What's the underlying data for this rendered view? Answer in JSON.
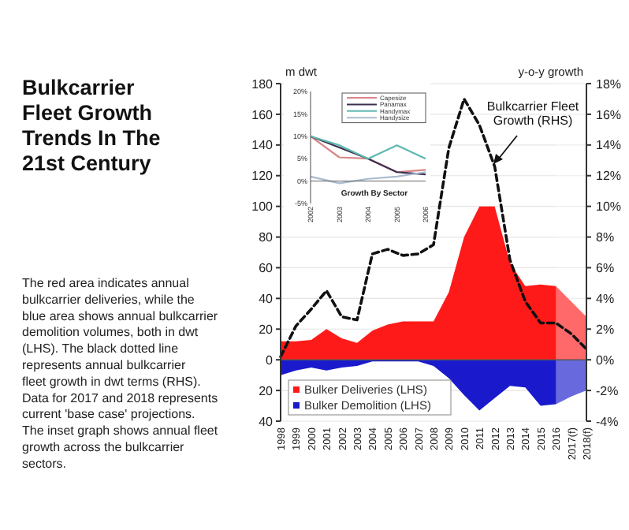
{
  "chart_data": [
    {
      "type": "area",
      "title": "Bulkcarrier Fleet Growth Trends In The 21st Century",
      "annotations": [
        "The red area indicates annual bulkcarrier deliveries, while the blue area shows annual bulkcarrier demolition volumes, both in dwt (LHS). The black dotted line represents annual bulkcarrier fleet growth in dwt terms (RHS). Data for 2017 and 2018 represents current 'base case' projections. The inset graph shows annual fleet growth across the bulkcarrier sectors."
      ],
      "ylabel": "m dwt",
      "y2label": "y-o-y growth",
      "categories": [
        "1998",
        "1999",
        "2000",
        "2001",
        "2002",
        "2003",
        "2004",
        "2005",
        "2006",
        "2007",
        "2008",
        "2009",
        "2010",
        "2011",
        "2012",
        "2013",
        "2014",
        "2015",
        "2016",
        "2017(f)",
        "2018(f)"
      ],
      "series": [
        {
          "name": "Bulker Deliveries (LHS)",
          "color": "#ff1a1a",
          "values": [
            12,
            12,
            13,
            20,
            14,
            11,
            19,
            23,
            25,
            25,
            25,
            44,
            80,
            100,
            100,
            63,
            48,
            49,
            48,
            38,
            28
          ]
        },
        {
          "name": "Bulker Demolition (LHS)",
          "color": "#1a1acc",
          "values": [
            -10,
            -7,
            -5,
            -7,
            -5,
            -4,
            -1,
            -1,
            -1,
            -1,
            -4,
            -12,
            -23,
            -33,
            -25,
            -17,
            -18,
            -30,
            -29,
            -24,
            -20
          ]
        },
        {
          "name": "Bulkcarrier Fleet Growth (RHS)",
          "type": "line",
          "axis": "y2",
          "color": "#111111",
          "line_style": "dashed",
          "values": [
            0.2,
            2.2,
            3.3,
            4.5,
            2.8,
            2.6,
            6.9,
            7.2,
            6.8,
            6.9,
            7.5,
            13.8,
            17,
            15.3,
            12.6,
            6.5,
            3.8,
            2.4,
            2.4,
            1.7,
            0.7
          ]
        }
      ],
      "ylim": [
        -40,
        180
      ],
      "yticks": [
        {
          "value": -40,
          "label": "40"
        },
        {
          "value": -20,
          "label": "20"
        },
        0,
        20,
        40,
        60,
        80,
        100,
        120,
        140,
        160,
        180
      ],
      "y2lim": [
        -4,
        18
      ],
      "y2ticks": [
        {
          "value": -4,
          "label": "-4%"
        },
        {
          "value": -2,
          "label": "-2%"
        },
        {
          "value": 0,
          "label": "0%"
        },
        {
          "value": 2,
          "label": "2%"
        },
        {
          "value": 4,
          "label": "4%"
        },
        {
          "value": 6,
          "label": "6%"
        },
        {
          "value": 8,
          "label": "8%"
        },
        {
          "value": 10,
          "label": "10%"
        },
        {
          "value": 12,
          "label": "12%"
        },
        {
          "value": 14,
          "label": "14%"
        },
        {
          "value": 16,
          "label": "16%"
        },
        {
          "value": 18,
          "label": "18%"
        }
      ],
      "bands": [
        {
          "axis": "x",
          "from": "2016",
          "to": "2018(f)",
          "color": "#ffffff"
        }
      ],
      "grid": "y",
      "legend": "bottom left"
    },
    {
      "type": "line",
      "xlabel": "Growth By Sector",
      "x": [
        2002,
        2003,
        2004,
        2005,
        2006
      ],
      "xlim": [
        2002,
        2006
      ],
      "xticks": [
        2002,
        2003,
        2004,
        2005,
        2006
      ],
      "ylim": [
        -5,
        20
      ],
      "yticks": [
        {
          "value": -5,
          "label": "-5%"
        },
        {
          "value": 0,
          "label": "0%"
        },
        {
          "value": 5,
          "label": "5%"
        },
        {
          "value": 10,
          "label": "10%"
        },
        {
          "value": 15,
          "label": "15%"
        },
        {
          "value": 20,
          "label": "20%"
        }
      ],
      "series": [
        {
          "name": "Capesize",
          "color": "#d9868a",
          "values": [
            10,
            5.3,
            5,
            2,
            2.5
          ]
        },
        {
          "name": "Panamax",
          "color": "#3c3050",
          "values": [
            10,
            7.5,
            5,
            2,
            1.5
          ]
        },
        {
          "name": "Handymax",
          "color": "#5fb8b0",
          "values": [
            10,
            8,
            5,
            8,
            5
          ]
        },
        {
          "name": "Handysize",
          "color": "#a8bccf",
          "values": [
            1,
            -0.5,
            0.5,
            1,
            2
          ]
        }
      ],
      "legend": "top right"
    }
  ]
}
